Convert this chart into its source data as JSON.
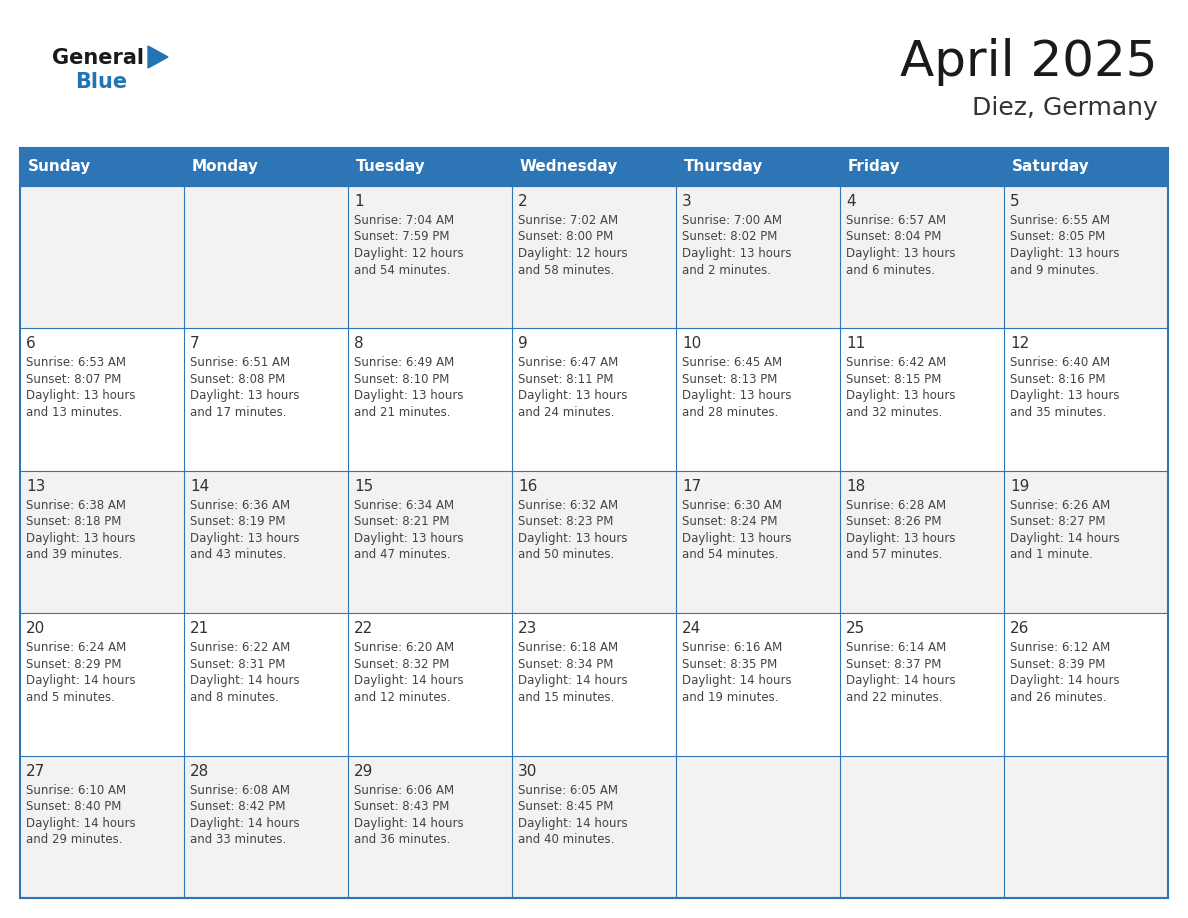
{
  "title": "April 2025",
  "subtitle": "Diez, Germany",
  "header_bg": "#2E75B6",
  "header_text_color": "#FFFFFF",
  "day_names": [
    "Sunday",
    "Monday",
    "Tuesday",
    "Wednesday",
    "Thursday",
    "Friday",
    "Saturday"
  ],
  "cell_bg_white": "#FFFFFF",
  "cell_bg_gray": "#F2F2F2",
  "grid_line_color": "#2E75B6",
  "border_color": "#2E75B6",
  "day_num_color": "#333333",
  "text_color": "#444444",
  "title_color": "#1a1a1a",
  "subtitle_color": "#333333",
  "logo_general_color": "#1a1a1a",
  "logo_blue_color": "#2175B5",
  "weeks": [
    [
      {
        "day": 0,
        "info": ""
      },
      {
        "day": 0,
        "info": ""
      },
      {
        "day": 1,
        "info": "Sunrise: 7:04 AM\nSunset: 7:59 PM\nDaylight: 12 hours\nand 54 minutes."
      },
      {
        "day": 2,
        "info": "Sunrise: 7:02 AM\nSunset: 8:00 PM\nDaylight: 12 hours\nand 58 minutes."
      },
      {
        "day": 3,
        "info": "Sunrise: 7:00 AM\nSunset: 8:02 PM\nDaylight: 13 hours\nand 2 minutes."
      },
      {
        "day": 4,
        "info": "Sunrise: 6:57 AM\nSunset: 8:04 PM\nDaylight: 13 hours\nand 6 minutes."
      },
      {
        "day": 5,
        "info": "Sunrise: 6:55 AM\nSunset: 8:05 PM\nDaylight: 13 hours\nand 9 minutes."
      }
    ],
    [
      {
        "day": 6,
        "info": "Sunrise: 6:53 AM\nSunset: 8:07 PM\nDaylight: 13 hours\nand 13 minutes."
      },
      {
        "day": 7,
        "info": "Sunrise: 6:51 AM\nSunset: 8:08 PM\nDaylight: 13 hours\nand 17 minutes."
      },
      {
        "day": 8,
        "info": "Sunrise: 6:49 AM\nSunset: 8:10 PM\nDaylight: 13 hours\nand 21 minutes."
      },
      {
        "day": 9,
        "info": "Sunrise: 6:47 AM\nSunset: 8:11 PM\nDaylight: 13 hours\nand 24 minutes."
      },
      {
        "day": 10,
        "info": "Sunrise: 6:45 AM\nSunset: 8:13 PM\nDaylight: 13 hours\nand 28 minutes."
      },
      {
        "day": 11,
        "info": "Sunrise: 6:42 AM\nSunset: 8:15 PM\nDaylight: 13 hours\nand 32 minutes."
      },
      {
        "day": 12,
        "info": "Sunrise: 6:40 AM\nSunset: 8:16 PM\nDaylight: 13 hours\nand 35 minutes."
      }
    ],
    [
      {
        "day": 13,
        "info": "Sunrise: 6:38 AM\nSunset: 8:18 PM\nDaylight: 13 hours\nand 39 minutes."
      },
      {
        "day": 14,
        "info": "Sunrise: 6:36 AM\nSunset: 8:19 PM\nDaylight: 13 hours\nand 43 minutes."
      },
      {
        "day": 15,
        "info": "Sunrise: 6:34 AM\nSunset: 8:21 PM\nDaylight: 13 hours\nand 47 minutes."
      },
      {
        "day": 16,
        "info": "Sunrise: 6:32 AM\nSunset: 8:23 PM\nDaylight: 13 hours\nand 50 minutes."
      },
      {
        "day": 17,
        "info": "Sunrise: 6:30 AM\nSunset: 8:24 PM\nDaylight: 13 hours\nand 54 minutes."
      },
      {
        "day": 18,
        "info": "Sunrise: 6:28 AM\nSunset: 8:26 PM\nDaylight: 13 hours\nand 57 minutes."
      },
      {
        "day": 19,
        "info": "Sunrise: 6:26 AM\nSunset: 8:27 PM\nDaylight: 14 hours\nand 1 minute."
      }
    ],
    [
      {
        "day": 20,
        "info": "Sunrise: 6:24 AM\nSunset: 8:29 PM\nDaylight: 14 hours\nand 5 minutes."
      },
      {
        "day": 21,
        "info": "Sunrise: 6:22 AM\nSunset: 8:31 PM\nDaylight: 14 hours\nand 8 minutes."
      },
      {
        "day": 22,
        "info": "Sunrise: 6:20 AM\nSunset: 8:32 PM\nDaylight: 14 hours\nand 12 minutes."
      },
      {
        "day": 23,
        "info": "Sunrise: 6:18 AM\nSunset: 8:34 PM\nDaylight: 14 hours\nand 15 minutes."
      },
      {
        "day": 24,
        "info": "Sunrise: 6:16 AM\nSunset: 8:35 PM\nDaylight: 14 hours\nand 19 minutes."
      },
      {
        "day": 25,
        "info": "Sunrise: 6:14 AM\nSunset: 8:37 PM\nDaylight: 14 hours\nand 22 minutes."
      },
      {
        "day": 26,
        "info": "Sunrise: 6:12 AM\nSunset: 8:39 PM\nDaylight: 14 hours\nand 26 minutes."
      }
    ],
    [
      {
        "day": 27,
        "info": "Sunrise: 6:10 AM\nSunset: 8:40 PM\nDaylight: 14 hours\nand 29 minutes."
      },
      {
        "day": 28,
        "info": "Sunrise: 6:08 AM\nSunset: 8:42 PM\nDaylight: 14 hours\nand 33 minutes."
      },
      {
        "day": 29,
        "info": "Sunrise: 6:06 AM\nSunset: 8:43 PM\nDaylight: 14 hours\nand 36 minutes."
      },
      {
        "day": 30,
        "info": "Sunrise: 6:05 AM\nSunset: 8:45 PM\nDaylight: 14 hours\nand 40 minutes."
      },
      {
        "day": 0,
        "info": ""
      },
      {
        "day": 0,
        "info": ""
      },
      {
        "day": 0,
        "info": ""
      }
    ]
  ]
}
